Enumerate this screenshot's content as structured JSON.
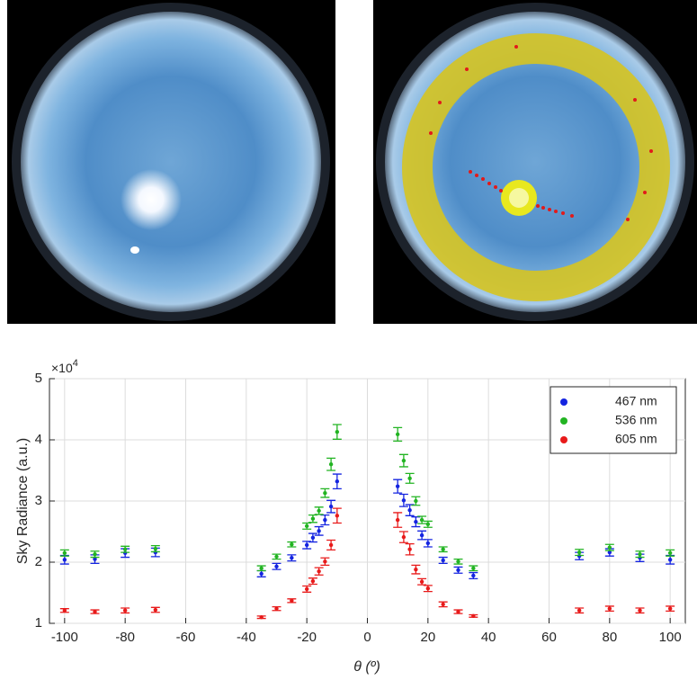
{
  "chart_data": {
    "type": "scatter",
    "y_label": "Sky Radiance (a.u.)",
    "x_label": "θ (º)",
    "y_multiplier": "×10",
    "y_multiplier_exponent": "4",
    "x": [
      -100,
      -90,
      -80,
      -70,
      -35,
      -30,
      -25,
      -20,
      -18,
      -16,
      -14,
      -12,
      -10,
      10,
      12,
      14,
      16,
      18,
      20,
      25,
      30,
      35,
      70,
      80,
      90,
      100
    ],
    "series": [
      {
        "name": "467 nm",
        "color": "#1424e0",
        "values": [
          2.04,
          2.05,
          2.15,
          2.16,
          1.81,
          1.93,
          2.07,
          2.28,
          2.4,
          2.51,
          2.69,
          2.91,
          3.32,
          3.24,
          3.01,
          2.85,
          2.66,
          2.44,
          2.31,
          2.03,
          1.87,
          1.78,
          2.1,
          2.16,
          2.07,
          2.04
        ],
        "errors": [
          0.07,
          0.07,
          0.07,
          0.07,
          0.05,
          0.05,
          0.05,
          0.06,
          0.07,
          0.07,
          0.08,
          0.1,
          0.12,
          0.11,
          0.1,
          0.09,
          0.08,
          0.07,
          0.06,
          0.05,
          0.05,
          0.05,
          0.06,
          0.06,
          0.06,
          0.07
        ]
      },
      {
        "name": "536 nm",
        "color": "#22b422",
        "values": [
          2.15,
          2.13,
          2.21,
          2.22,
          1.9,
          2.09,
          2.29,
          2.59,
          2.71,
          2.84,
          3.13,
          3.6,
          4.13,
          4.09,
          3.66,
          3.37,
          3.0,
          2.69,
          2.62,
          2.21,
          2.01,
          1.9,
          2.16,
          2.24,
          2.13,
          2.15
        ],
        "errors": [
          0.05,
          0.05,
          0.05,
          0.05,
          0.04,
          0.04,
          0.04,
          0.05,
          0.06,
          0.06,
          0.07,
          0.1,
          0.12,
          0.11,
          0.1,
          0.08,
          0.07,
          0.06,
          0.05,
          0.04,
          0.04,
          0.04,
          0.05,
          0.05,
          0.05,
          0.05
        ]
      },
      {
        "name": "605 nm",
        "color": "#e81a1a",
        "values": [
          1.21,
          1.19,
          1.21,
          1.22,
          1.1,
          1.24,
          1.37,
          1.56,
          1.69,
          1.85,
          2.01,
          2.28,
          2.76,
          2.69,
          2.41,
          2.21,
          1.88,
          1.68,
          1.57,
          1.31,
          1.19,
          1.12,
          1.21,
          1.24,
          1.21,
          1.24
        ],
        "errors": [
          0.03,
          0.03,
          0.04,
          0.04,
          0.02,
          0.03,
          0.03,
          0.05,
          0.05,
          0.06,
          0.06,
          0.08,
          0.12,
          0.12,
          0.09,
          0.09,
          0.07,
          0.05,
          0.05,
          0.04,
          0.03,
          0.02,
          0.04,
          0.04,
          0.04,
          0.04
        ]
      }
    ],
    "xlim": [
      -105,
      105
    ],
    "xticks": [
      -100,
      -80,
      -60,
      -40,
      -20,
      0,
      20,
      40,
      60,
      80,
      100
    ],
    "ylim": [
      1,
      5
    ],
    "yticks": [
      1,
      2,
      3,
      4,
      5
    ],
    "grid": true,
    "legend": "top-right"
  }
}
